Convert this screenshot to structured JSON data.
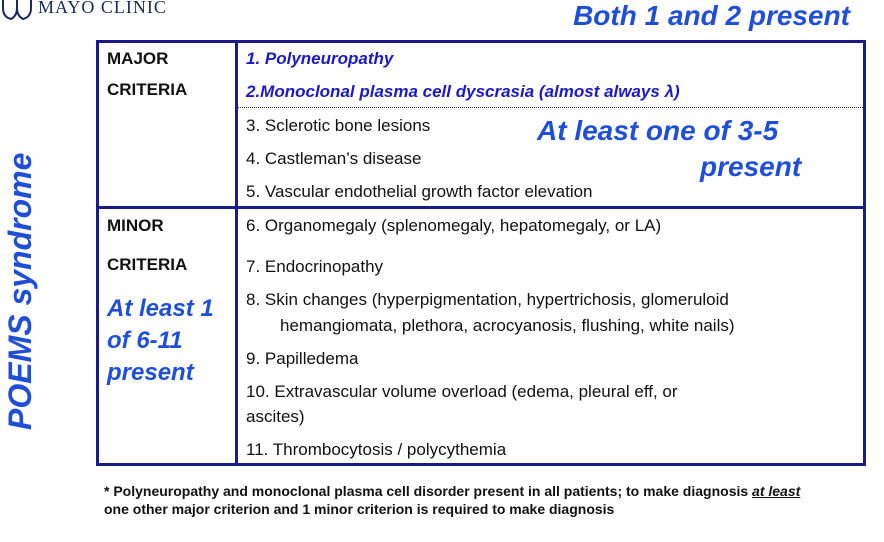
{
  "logo": {
    "text": "MAYO CLINIC"
  },
  "top_note": "Both 1 and 2 present",
  "side_title": "POEMS syndrome",
  "major": {
    "header_line1": "MAJOR",
    "header_line2": "CRITERIA",
    "items": [
      "1. Polyneuropathy",
      "2.Monoclonal plasma cell dyscrasia (almost always λ)",
      "3. Sclerotic bone lesions",
      "4. Castleman’s disease",
      "5. Vascular endothelial growth factor elevation"
    ],
    "note_line1": "At least one of 3-5",
    "note_line2": "present"
  },
  "minor": {
    "header_line1": "MINOR",
    "header_line2": "CRITERIA",
    "note": "At least 1 of 6-11 present",
    "items": [
      "6.  Organomegaly (splenomegaly, hepatomegaly, or LA)",
      "7.  Endocrinopathy",
      "8.  Skin changes (hyperpigmentation, hypertrichosis, glomeruloid",
      "hemangiomata, plethora, acrocyanosis, flushing, white nails)",
      "9.  Papilledema",
      "10. Extravascular volume overload (edema, pleural eff, or",
      "ascites)",
      "11. Thrombocytosis / polycythemia"
    ]
  },
  "footnote": {
    "part1": "* Polyneuropathy and monoclonal plasma cell disorder present in all patients; to make diagnosis ",
    "emph": "at least",
    "part2": " one other major criterion and 1 minor criterion is required to make diagnosis"
  }
}
